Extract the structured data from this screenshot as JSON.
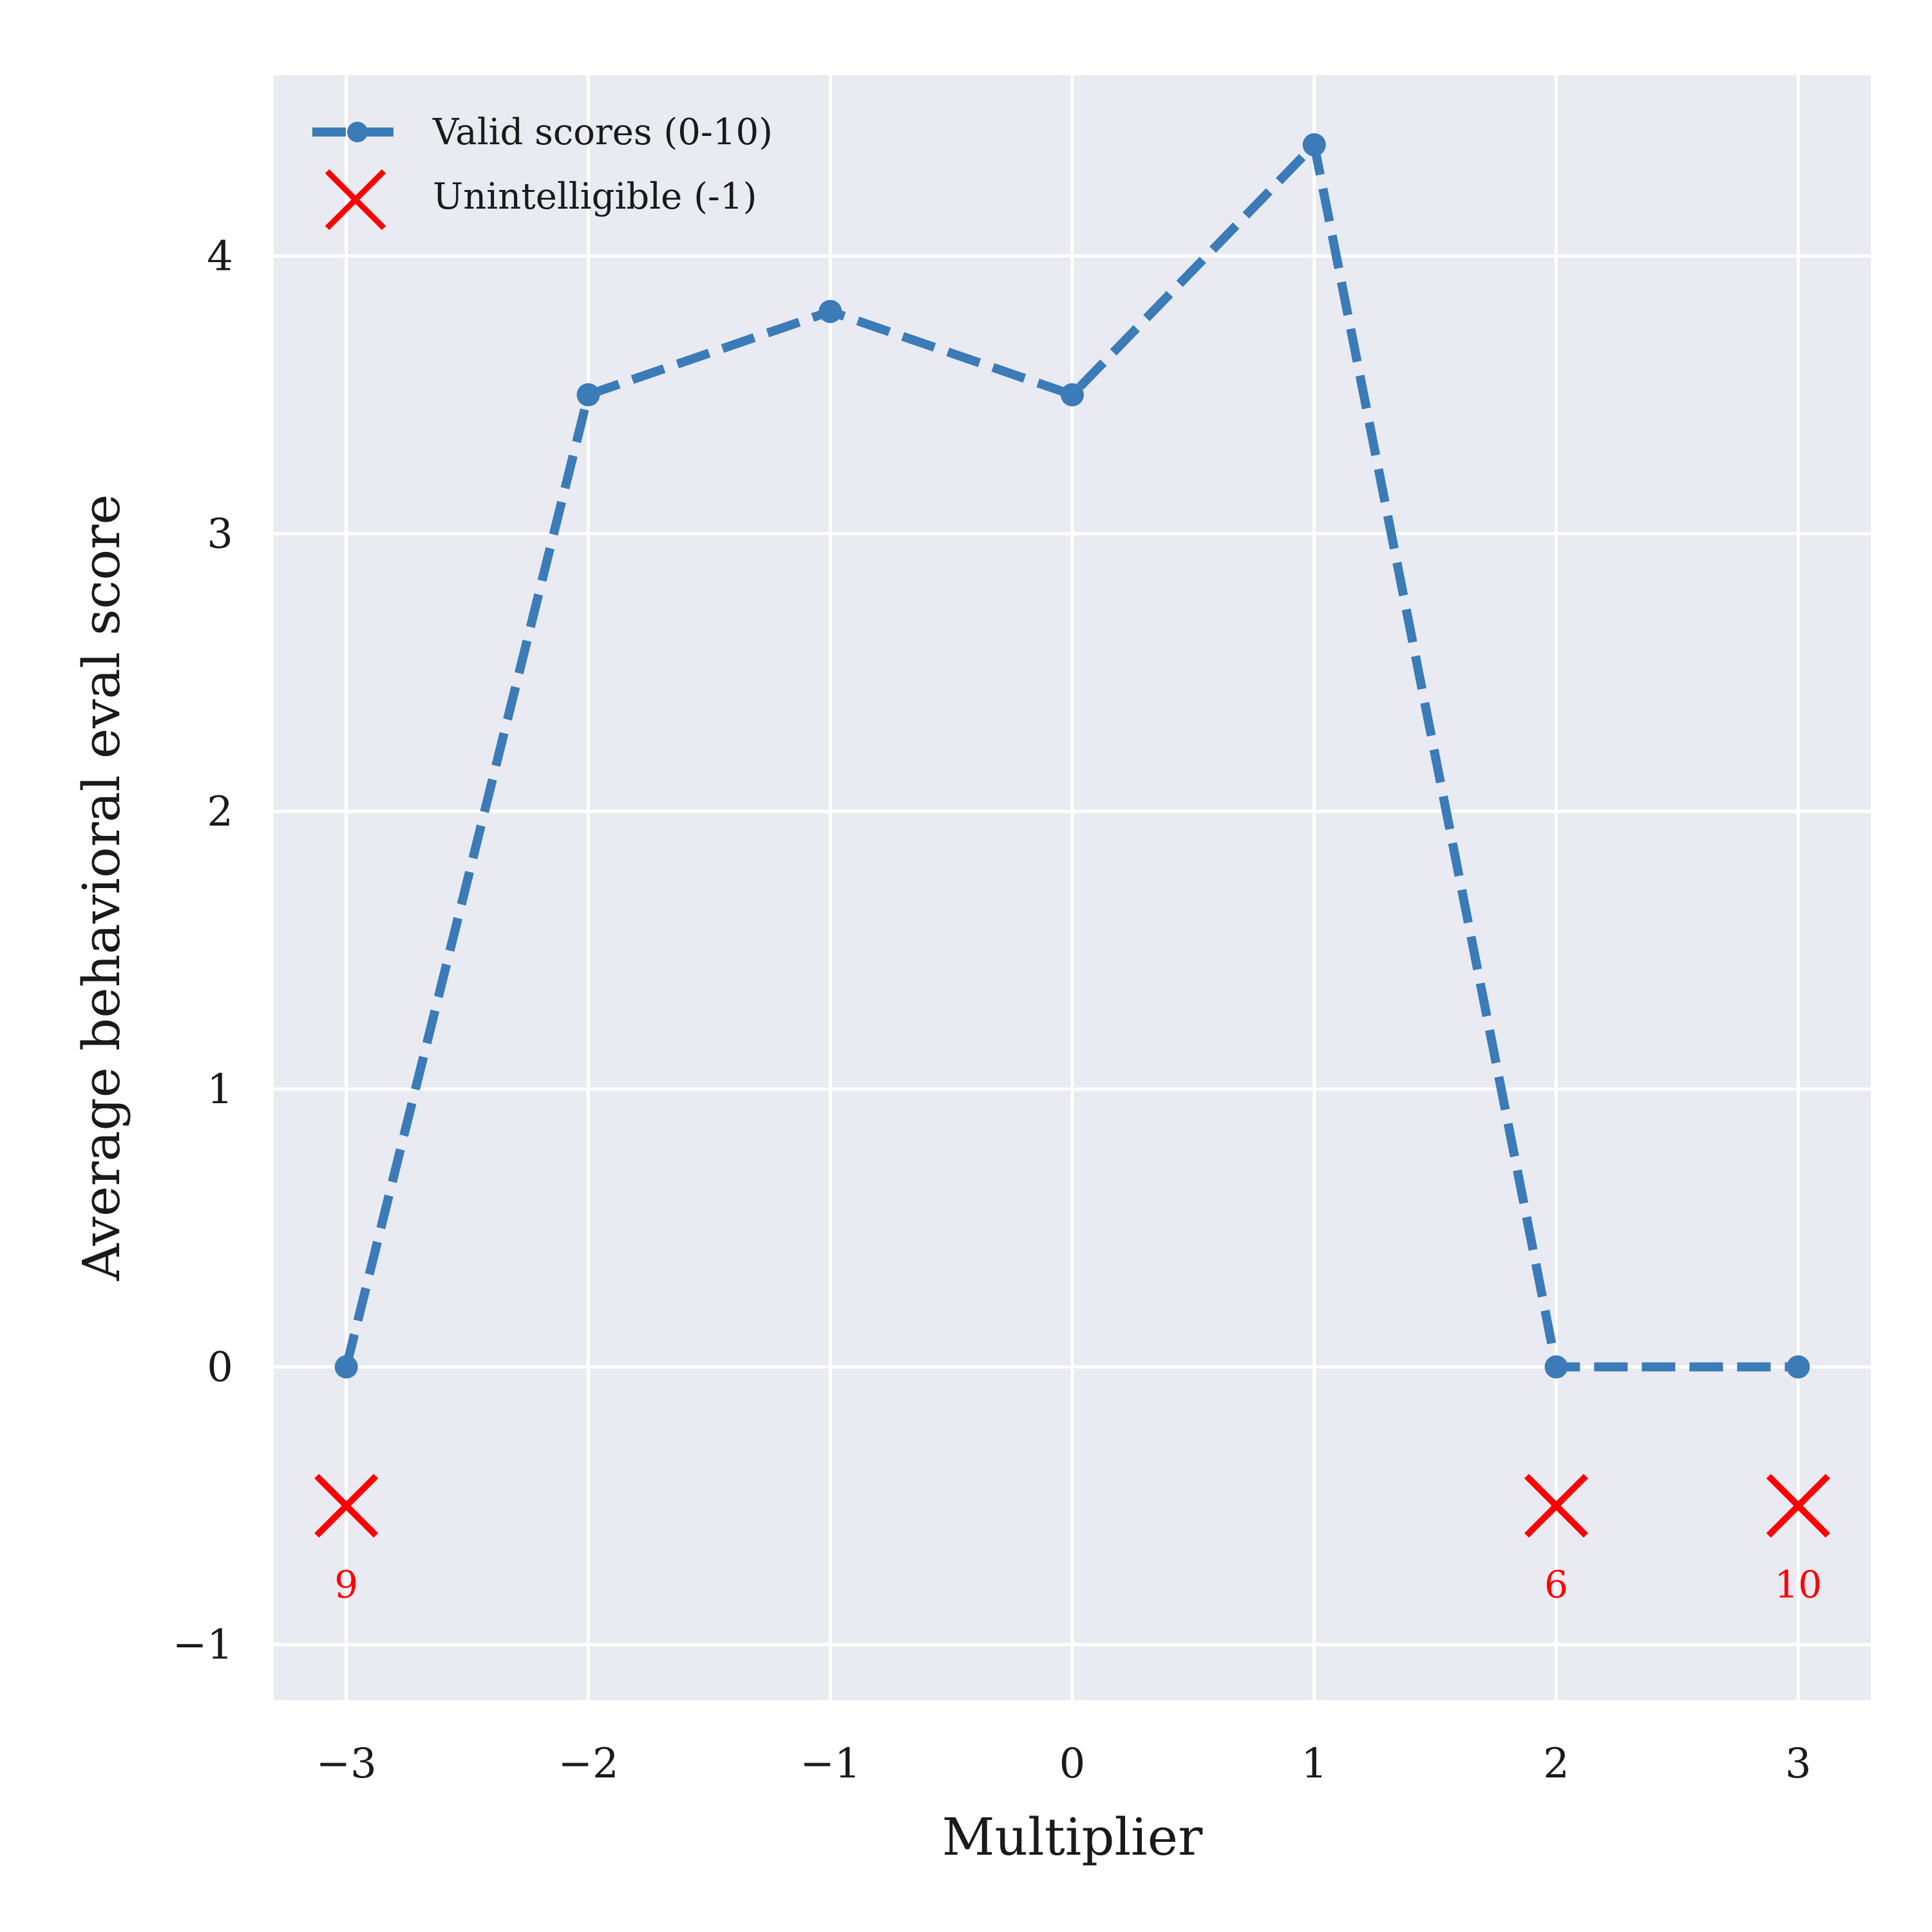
{
  "chart_data": {
    "type": "line",
    "xlabel": "Multiplier",
    "ylabel": "Average behavioral eval score",
    "xlim": [
      -3.3,
      3.3
    ],
    "ylim": [
      -1.2,
      4.65
    ],
    "x_ticks": [
      -3,
      -2,
      -1,
      0,
      1,
      2,
      3
    ],
    "x_tick_labels": [
      "−3",
      "−2",
      "−1",
      "0",
      "1",
      "2",
      "3"
    ],
    "y_ticks": [
      -1,
      0,
      1,
      2,
      3,
      4
    ],
    "y_tick_labels": [
      "−1",
      "0",
      "1",
      "2",
      "3",
      "4"
    ],
    "grid": true,
    "legend_position": "top-left",
    "series": [
      {
        "name": "Valid scores (0-10)",
        "style": "dashed-line-with-circle-markers",
        "color": "#3a7bb8",
        "x": [
          -3,
          -2,
          -1,
          0,
          1,
          2,
          3
        ],
        "y": [
          0.0,
          3.5,
          3.8,
          3.5,
          4.4,
          0.0,
          0.0
        ]
      },
      {
        "name": "Unintelligible (-1)",
        "style": "x-markers",
        "color": "#ff0000",
        "x": [
          -3,
          2,
          3
        ],
        "y": [
          -0.5,
          -0.5,
          -0.5
        ],
        "counts": [
          "9",
          "6",
          "10"
        ]
      }
    ]
  },
  "colors": {
    "plot_background": "#e9eaf2",
    "grid": "#ffffff",
    "valid_line": "#3a7bb8",
    "unintelligible": "#ff0000"
  }
}
